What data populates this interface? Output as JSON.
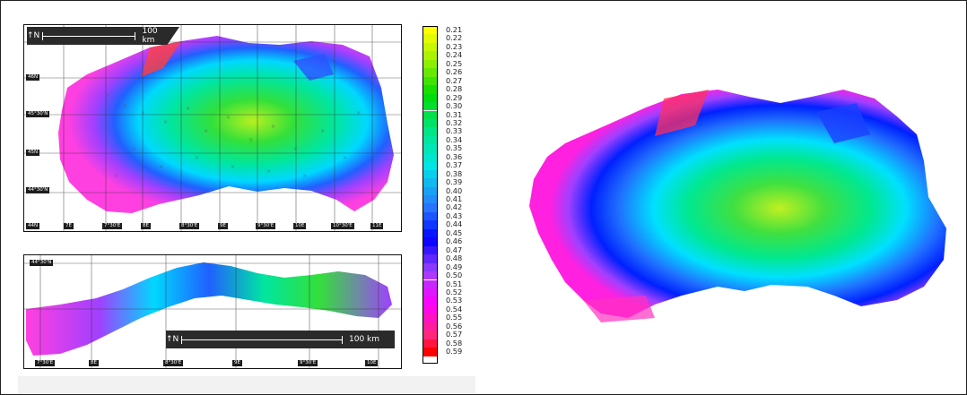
{
  "legend": {
    "values": [
      "0.21",
      "0.22",
      "0.23",
      "0.24",
      "0.25",
      "0.26",
      "0.27",
      "0.28",
      "0.29",
      "0.30",
      "0.31",
      "0.32",
      "0.33",
      "0.34",
      "0.35",
      "0.36",
      "0.37",
      "0.38",
      "0.39",
      "0.40",
      "0.41",
      "0.42",
      "0.43",
      "0.44",
      "0.45",
      "0.46",
      "0.47",
      "0.48",
      "0.49",
      "0.50",
      "0.51",
      "0.52",
      "0.53",
      "0.54",
      "0.55",
      "0.56",
      "0.57",
      "0.58",
      "0.59"
    ],
    "colors": {
      "low": "#ffff00",
      "mid_green": "#00e000",
      "cyan": "#00eeee",
      "blue": "#0000ff",
      "purple": "#a040ff",
      "magenta": "#ff00ff",
      "high": "#ff0000"
    }
  },
  "map_top": {
    "scale_label": "100 km",
    "north_symbol": "↑N",
    "lat_labels": [
      "46N",
      "45°30'N",
      "45N",
      "44°30'N",
      "44N"
    ],
    "lon_labels": [
      "7E",
      "7°30'E",
      "8E",
      "8°30'E",
      "9E",
      "9°30'E",
      "10E",
      "10°30'E",
      "11E"
    ]
  },
  "map_bottom": {
    "scale_label": "100 km",
    "north_symbol": "↑N",
    "lat_labels": [
      "44°30'N"
    ],
    "lon_labels": [
      "7°30'E",
      "8E",
      "8°30'E",
      "9E",
      "9°30'E",
      "10E"
    ]
  }
}
